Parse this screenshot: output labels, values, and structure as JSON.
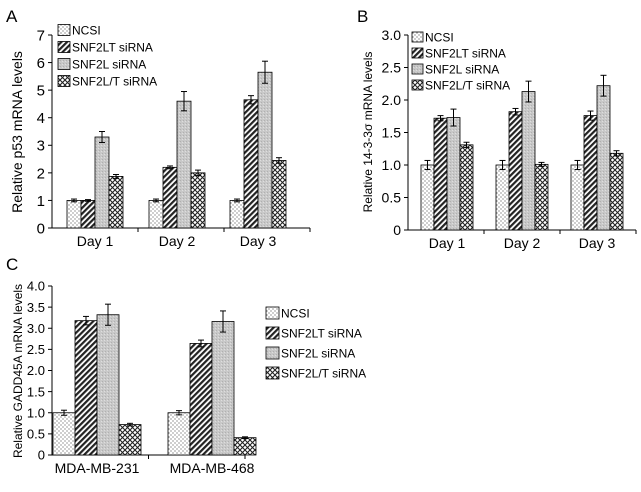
{
  "legend_labels": [
    "NCSI",
    "SNF2LT siRNA",
    "SNF2L siRNA",
    "SNF2L/T siRNA"
  ],
  "chart_data": [
    {
      "panel": "A",
      "type": "bar",
      "title": "",
      "xlabel": "",
      "ylabel": "Relative p53 mRNA levels",
      "ylim": [
        0,
        7
      ],
      "yticks": [
        "0",
        "1",
        "2",
        "3",
        "4",
        "5",
        "6",
        "7"
      ],
      "categories": [
        "Day 1",
        "Day 2",
        "Day 3"
      ],
      "series": [
        {
          "name": "NCSI",
          "values": [
            1.0,
            1.0,
            1.0
          ],
          "errors": [
            0.05,
            0.05,
            0.05
          ]
        },
        {
          "name": "SNF2LT siRNA",
          "values": [
            1.0,
            2.2,
            4.65
          ],
          "errors": [
            0.03,
            0.05,
            0.15
          ]
        },
        {
          "name": "SNF2L siRNA",
          "values": [
            3.3,
            4.6,
            5.65
          ],
          "errors": [
            0.2,
            0.35,
            0.4
          ]
        },
        {
          "name": "SNF2L/T siRNA",
          "values": [
            1.87,
            2.0,
            2.45
          ],
          "errors": [
            0.07,
            0.1,
            0.1
          ]
        }
      ],
      "legend": "top-left"
    },
    {
      "panel": "B",
      "type": "bar",
      "title": "",
      "xlabel": "",
      "ylabel": "Relative 14-3-3σ mRNA levels",
      "ylim": [
        0,
        3
      ],
      "yticks": [
        "0",
        "0.5",
        "1.0",
        "1.5",
        "2.0",
        "2.5",
        "3.0"
      ],
      "categories": [
        "Day 1",
        "Day 2",
        "Day 3"
      ],
      "series": [
        {
          "name": "NCSI",
          "values": [
            1.0,
            1.0,
            1.0
          ],
          "errors": [
            0.07,
            0.07,
            0.07
          ]
        },
        {
          "name": "SNF2LT siRNA",
          "values": [
            1.72,
            1.82,
            1.76
          ],
          "errors": [
            0.04,
            0.05,
            0.07
          ]
        },
        {
          "name": "SNF2L siRNA",
          "values": [
            1.73,
            2.13,
            2.22
          ],
          "errors": [
            0.13,
            0.16,
            0.16
          ]
        },
        {
          "name": "SNF2L/T siRNA",
          "values": [
            1.31,
            1.01,
            1.18
          ],
          "errors": [
            0.04,
            0.03,
            0.04
          ]
        }
      ],
      "legend": "top-left"
    },
    {
      "panel": "C",
      "type": "bar",
      "title": "",
      "xlabel": "",
      "ylabel": "Relative GADD45A mRNA levels",
      "ylim": [
        0,
        4
      ],
      "yticks": [
        "0",
        "0.5",
        "1.0",
        "1.5",
        "2.0",
        "2.5",
        "3.0",
        "3.5",
        "4.0"
      ],
      "categories": [
        "MDA-MB-231",
        "MDA-MB-468"
      ],
      "series": [
        {
          "name": "NCSI",
          "values": [
            1.0,
            1.0
          ],
          "errors": [
            0.06,
            0.05
          ]
        },
        {
          "name": "SNF2LT siRNA",
          "values": [
            3.18,
            2.64
          ],
          "errors": [
            0.1,
            0.08
          ]
        },
        {
          "name": "SNF2L siRNA",
          "values": [
            3.32,
            3.16
          ],
          "errors": [
            0.25,
            0.25
          ]
        },
        {
          "name": "SNF2L/T siRNA",
          "values": [
            0.72,
            0.41
          ],
          "errors": [
            0.03,
            0.02
          ]
        }
      ],
      "legend": "right"
    }
  ]
}
